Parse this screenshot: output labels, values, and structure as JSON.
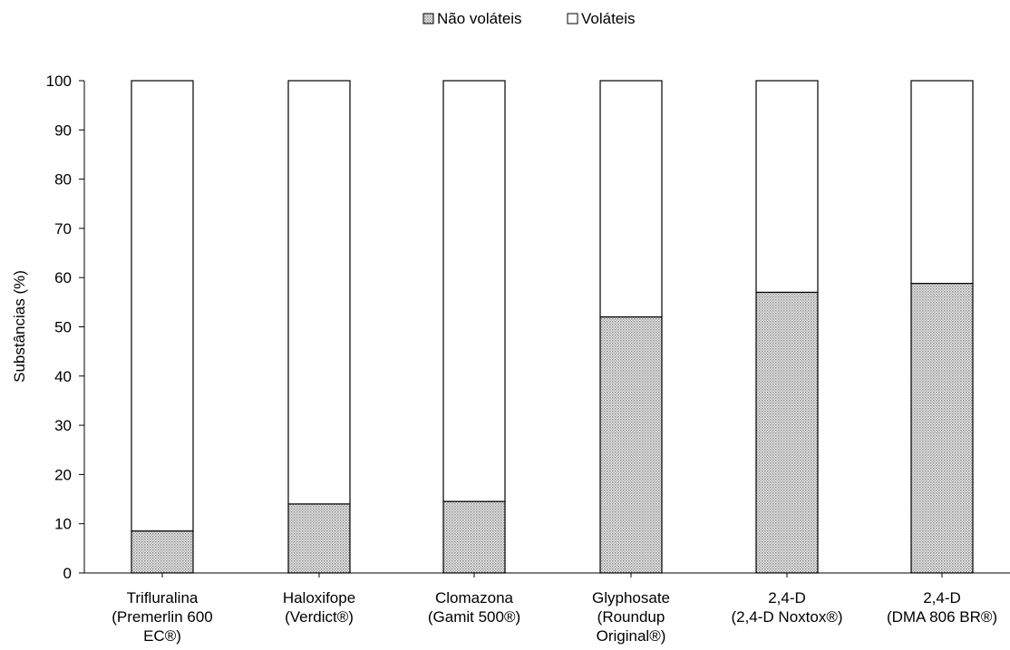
{
  "chart_data": {
    "type": "bar",
    "stacked": true,
    "categories": [
      [
        "Trifluralina",
        "(Premerlin 600",
        "EC®)"
      ],
      [
        "Haloxifope",
        "(Verdict®)"
      ],
      [
        "Clomazona",
        "(Gamit 500®)"
      ],
      [
        "Glyphosate",
        "(Roundup",
        "Original®)"
      ],
      [
        "2,4-D",
        "(2,4-D Noxtox®)"
      ],
      [
        "2,4-D",
        "(DMA 806 BR®)"
      ]
    ],
    "series": [
      {
        "name": "Não voláteis",
        "values": [
          8.5,
          14.0,
          14.5,
          52.0,
          57.0,
          58.8
        ],
        "pattern": "dotted-gray"
      },
      {
        "name": "Voláteis",
        "values": [
          91.5,
          86.0,
          85.5,
          48.0,
          43.0,
          41.2
        ],
        "pattern": "white"
      }
    ],
    "ylabel": "Substâncias (%)",
    "xlabel": "",
    "ylim": [
      0,
      100
    ],
    "yticks": [
      0,
      10,
      20,
      30,
      40,
      50,
      60,
      70,
      80,
      90,
      100
    ],
    "grid": false,
    "legend_position": "top-center",
    "colors": {
      "fill_dark": "#9a9a9a",
      "fill_light": "#ececec",
      "stroke": "#000000",
      "background": "#ffffff"
    }
  }
}
